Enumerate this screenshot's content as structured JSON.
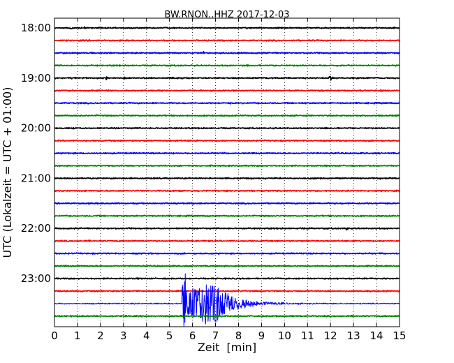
{
  "chart_data": {
    "type": "line",
    "title": "BW.RNON..HHZ 2017-12-03",
    "xlabel": "Zeit  [min]",
    "ylabel": "UTC (Lokalzeit = UTC + 01:00)",
    "xlim": [
      0,
      15
    ],
    "x_ticks": [
      0,
      1,
      2,
      3,
      4,
      5,
      6,
      7,
      8,
      9,
      10,
      11,
      12,
      13,
      14,
      15
    ],
    "y_tick_labels": [
      "18:00",
      "19:00",
      "20:00",
      "21:00",
      "22:00",
      "23:00"
    ],
    "grid": "dotted",
    "series": [
      {
        "row": 0,
        "start": "18:00",
        "color": "#000000",
        "events": [
          {
            "x": 0.7,
            "amp": 0.3
          },
          {
            "x": 1.3,
            "amp": 0.25
          },
          {
            "x": 14.7,
            "amp": 0.2
          }
        ]
      },
      {
        "row": 1,
        "start": "18:15",
        "color": "#ff0000",
        "events": []
      },
      {
        "row": 2,
        "start": "18:30",
        "color": "#0000ff",
        "events": [
          {
            "x": 6.5,
            "amp": 0.2
          }
        ]
      },
      {
        "row": 3,
        "start": "18:45",
        "color": "#008000",
        "events": [
          {
            "x": 14.9,
            "amp": 0.25
          }
        ]
      },
      {
        "row": 4,
        "start": "19:00",
        "color": "#000000",
        "events": [
          {
            "x": 2.3,
            "amp": 0.3
          },
          {
            "x": 3.0,
            "amp": 0.25
          },
          {
            "x": 12.0,
            "amp": 0.45
          }
        ]
      },
      {
        "row": 5,
        "start": "19:15",
        "color": "#ff0000",
        "events": [
          {
            "x": 14.2,
            "amp": 0.2
          }
        ]
      },
      {
        "row": 6,
        "start": "19:30",
        "color": "#0000ff",
        "events": []
      },
      {
        "row": 7,
        "start": "19:45",
        "color": "#008000",
        "events": []
      },
      {
        "row": 8,
        "start": "20:00",
        "color": "#000000",
        "events": [
          {
            "x": 0.9,
            "amp": 0.25
          }
        ]
      },
      {
        "row": 9,
        "start": "20:15",
        "color": "#ff0000",
        "events": []
      },
      {
        "row": 10,
        "start": "20:30",
        "color": "#0000ff",
        "events": []
      },
      {
        "row": 11,
        "start": "20:45",
        "color": "#008000",
        "events": []
      },
      {
        "row": 12,
        "start": "21:00",
        "color": "#000000",
        "events": [
          {
            "x": 14.2,
            "amp": 0.2
          }
        ]
      },
      {
        "row": 13,
        "start": "21:15",
        "color": "#ff0000",
        "events": []
      },
      {
        "row": 14,
        "start": "21:30",
        "color": "#0000ff",
        "events": []
      },
      {
        "row": 15,
        "start": "21:45",
        "color": "#008000",
        "events": []
      },
      {
        "row": 16,
        "start": "22:00",
        "color": "#000000",
        "events": [
          {
            "x": 12.7,
            "amp": 0.4
          }
        ]
      },
      {
        "row": 17,
        "start": "22:15",
        "color": "#ff0000",
        "events": []
      },
      {
        "row": 18,
        "start": "22:30",
        "color": "#0000ff",
        "events": []
      },
      {
        "row": 19,
        "start": "22:45",
        "color": "#008000",
        "events": []
      },
      {
        "row": 20,
        "start": "23:00",
        "color": "#000000",
        "events": []
      },
      {
        "row": 21,
        "start": "23:15",
        "color": "#ff0000",
        "events": []
      },
      {
        "row": 22,
        "start": "23:30",
        "color": "#0000ff",
        "events": [],
        "quake": {
          "onset_min": 5.55,
          "peak_min": 6.7,
          "coda_end_min": 10.0
        }
      },
      {
        "row": 23,
        "start": "23:45",
        "color": "#008000",
        "events": []
      }
    ]
  }
}
